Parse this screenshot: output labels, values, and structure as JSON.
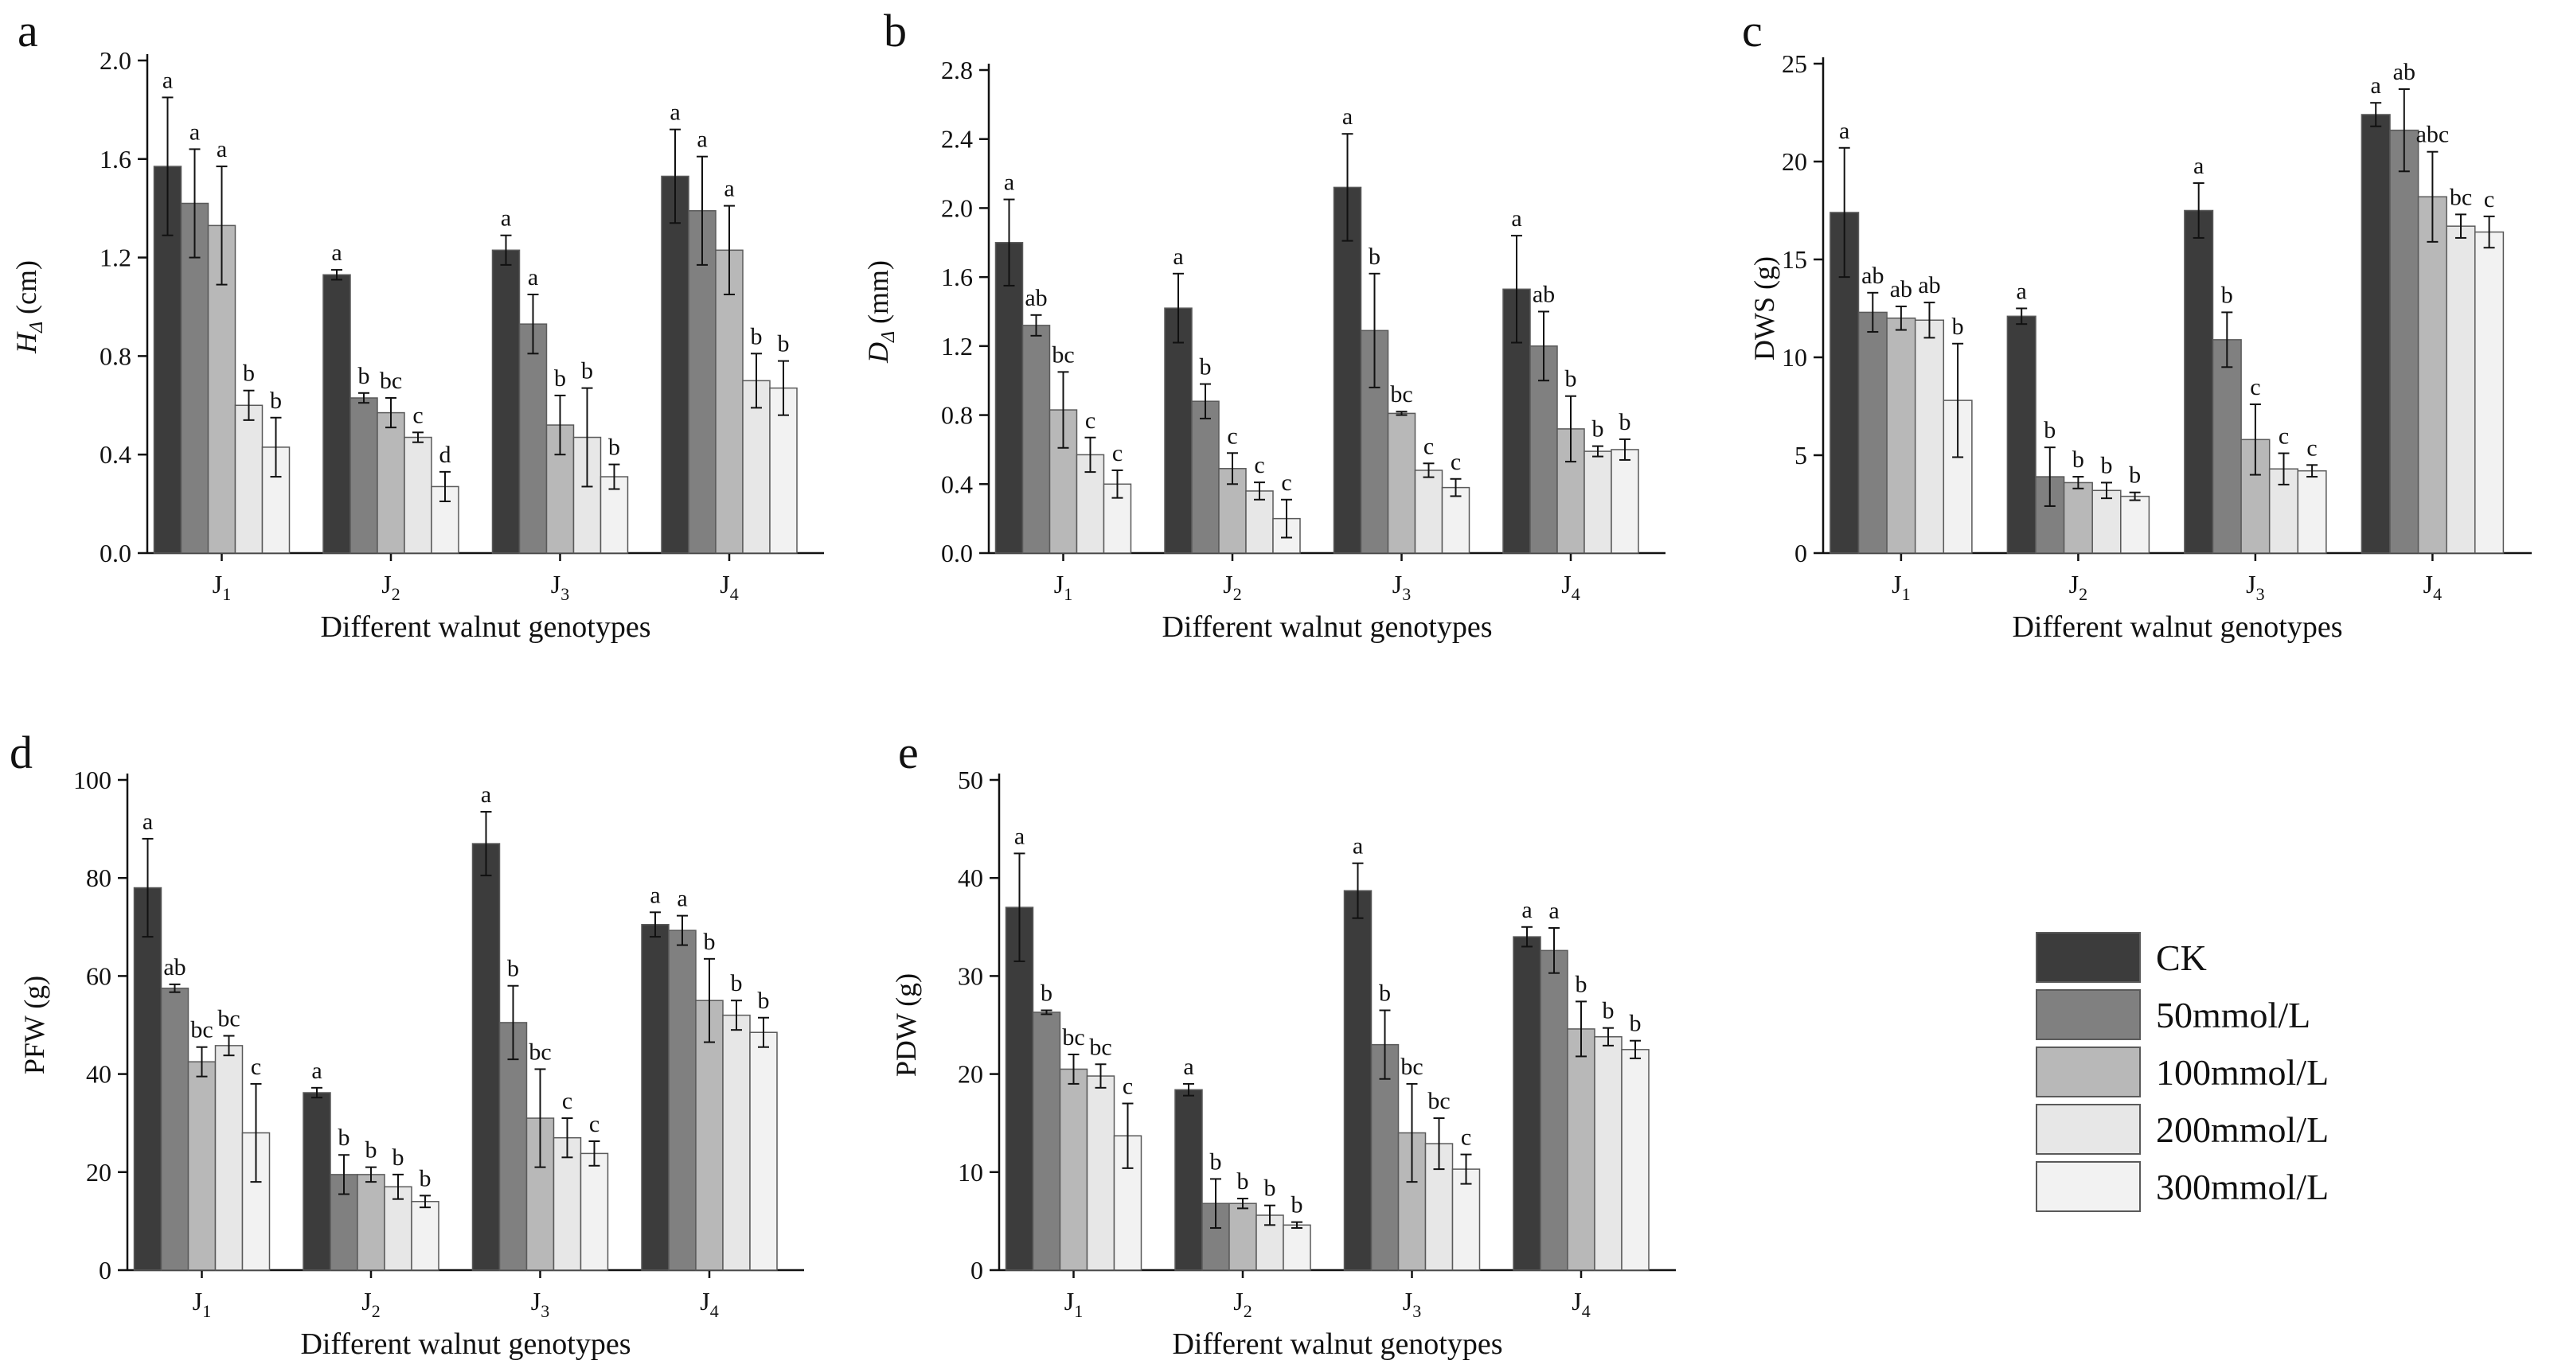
{
  "figure": {
    "xlabel": "Different walnut genotypes",
    "legend": [
      "CK",
      "50mmol/L",
      "100mmol/L",
      "200mmol/L",
      "300mmol/L"
    ],
    "colors": [
      "#3c3c3c",
      "#808080",
      "#b8b8b8",
      "#e7e7e7",
      "#f2f2f2"
    ]
  },
  "chart_data": [
    {
      "type": "bar",
      "panel": "a",
      "ylabel_main": "H",
      "ylabel_sub": "Δ",
      "ylabel_unit": " (cm)",
      "xlabel": "Different walnut genotypes",
      "categories": [
        "J1",
        "J2",
        "J3",
        "J4"
      ],
      "ylim": [
        0,
        2.0
      ],
      "yticks": [
        0.0,
        0.4,
        0.8,
        1.2,
        1.6,
        2.0
      ],
      "tick_decimals": 1,
      "series": [
        {
          "name": "CK",
          "values": [
            1.57,
            1.13,
            1.23,
            1.53
          ],
          "errors": [
            0.28,
            0.02,
            0.06,
            0.19
          ],
          "letters": [
            "a",
            "a",
            "a",
            "a"
          ]
        },
        {
          "name": "50mmol/L",
          "values": [
            1.42,
            0.63,
            0.93,
            1.39
          ],
          "errors": [
            0.22,
            0.02,
            0.12,
            0.22
          ],
          "letters": [
            "a",
            "b",
            "a",
            "a"
          ]
        },
        {
          "name": "100mmol/L",
          "values": [
            1.33,
            0.57,
            0.52,
            1.23
          ],
          "errors": [
            0.24,
            0.06,
            0.12,
            0.18
          ],
          "letters": [
            "a",
            "bc",
            "b",
            "a"
          ]
        },
        {
          "name": "200mmol/L",
          "values": [
            0.6,
            0.47,
            0.47,
            0.7
          ],
          "errors": [
            0.06,
            0.02,
            0.2,
            0.11
          ],
          "letters": [
            "b",
            "c",
            "b",
            "b"
          ]
        },
        {
          "name": "300mmol/L",
          "values": [
            0.43,
            0.27,
            0.31,
            0.67
          ],
          "errors": [
            0.12,
            0.06,
            0.05,
            0.11
          ],
          "letters": [
            "b",
            "d",
            "b",
            "b"
          ]
        }
      ]
    },
    {
      "type": "bar",
      "panel": "b",
      "ylabel_main": "D",
      "ylabel_sub": "Δ",
      "ylabel_unit": " (mm)",
      "xlabel": "Different walnut genotypes",
      "categories": [
        "J1",
        "J2",
        "J3",
        "J4"
      ],
      "ylim": [
        0,
        2.8
      ],
      "yticks": [
        0.0,
        0.4,
        0.8,
        1.2,
        1.6,
        2.0,
        2.4,
        2.8
      ],
      "tick_decimals": 1,
      "series": [
        {
          "name": "CK",
          "values": [
            1.8,
            1.42,
            2.12,
            1.53
          ],
          "errors": [
            0.25,
            0.2,
            0.31,
            0.31
          ],
          "letters": [
            "a",
            "a",
            "a",
            "a"
          ]
        },
        {
          "name": "50mmol/L",
          "values": [
            1.32,
            0.88,
            1.29,
            1.2
          ],
          "errors": [
            0.06,
            0.1,
            0.33,
            0.2
          ],
          "letters": [
            "ab",
            "b",
            "b",
            "ab"
          ]
        },
        {
          "name": "100mmol/L",
          "values": [
            0.83,
            0.49,
            0.81,
            0.72
          ],
          "errors": [
            0.22,
            0.09,
            0.01,
            0.19
          ],
          "letters": [
            "bc",
            "c",
            "bc",
            "b"
          ]
        },
        {
          "name": "200mmol/L",
          "values": [
            0.57,
            0.36,
            0.48,
            0.59
          ],
          "errors": [
            0.1,
            0.05,
            0.04,
            0.03
          ],
          "letters": [
            "c",
            "c",
            "c",
            "b"
          ]
        },
        {
          "name": "300mmol/L",
          "values": [
            0.4,
            0.2,
            0.38,
            0.6
          ],
          "errors": [
            0.08,
            0.11,
            0.05,
            0.06
          ],
          "letters": [
            "c",
            "c",
            "c",
            "b"
          ]
        }
      ]
    },
    {
      "type": "bar",
      "panel": "c",
      "ylabel_main": "DWS (g)",
      "ylabel_sub": "",
      "ylabel_unit": "",
      "xlabel": "Different walnut genotypes",
      "categories": [
        "J1",
        "J2",
        "J3",
        "J4"
      ],
      "ylim": [
        0,
        25
      ],
      "yticks": [
        0,
        5,
        10,
        15,
        20,
        25
      ],
      "tick_decimals": 0,
      "series": [
        {
          "name": "CK",
          "values": [
            17.4,
            12.1,
            17.5,
            22.4
          ],
          "errors": [
            3.3,
            0.4,
            1.4,
            0.6
          ],
          "letters": [
            "a",
            "a",
            "a",
            "a"
          ]
        },
        {
          "name": "50mmol/L",
          "values": [
            12.3,
            3.9,
            10.9,
            21.6
          ],
          "errors": [
            1.0,
            1.5,
            1.4,
            2.1
          ],
          "letters": [
            "ab",
            "b",
            "b",
            "ab"
          ]
        },
        {
          "name": "100mmol/L",
          "values": [
            12.0,
            3.6,
            5.8,
            18.2
          ],
          "errors": [
            0.6,
            0.3,
            1.8,
            2.3
          ],
          "letters": [
            "ab",
            "b",
            "c",
            "abc"
          ]
        },
        {
          "name": "200mmol/L",
          "values": [
            11.9,
            3.2,
            4.3,
            16.7
          ],
          "errors": [
            0.9,
            0.4,
            0.8,
            0.6
          ],
          "letters": [
            "ab",
            "b",
            "c",
            "bc"
          ]
        },
        {
          "name": "300mmol/L",
          "values": [
            7.8,
            2.9,
            4.2,
            16.4
          ],
          "errors": [
            2.9,
            0.2,
            0.3,
            0.8
          ],
          "letters": [
            "b",
            "b",
            "c",
            "c"
          ]
        }
      ]
    },
    {
      "type": "bar",
      "panel": "d",
      "ylabel_main": "PFW (g)",
      "ylabel_sub": "",
      "ylabel_unit": "",
      "xlabel": "Different walnut genotypes",
      "categories": [
        "J1",
        "J2",
        "J3",
        "J4"
      ],
      "ylim": [
        0,
        100
      ],
      "yticks": [
        0,
        20,
        40,
        60,
        80,
        100
      ],
      "tick_decimals": 0,
      "series": [
        {
          "name": "CK",
          "values": [
            78.0,
            36.2,
            87.0,
            70.5
          ],
          "errors": [
            10.0,
            1.0,
            6.5,
            2.5
          ],
          "letters": [
            "a",
            "a",
            "a",
            "a"
          ]
        },
        {
          "name": "50mmol/L",
          "values": [
            57.5,
            19.5,
            50.5,
            69.3
          ],
          "errors": [
            0.8,
            4.0,
            7.5,
            3.0
          ],
          "letters": [
            "ab",
            "b",
            "b",
            "a"
          ]
        },
        {
          "name": "100mmol/L",
          "values": [
            42.5,
            19.5,
            31.0,
            55.0
          ],
          "errors": [
            3.0,
            1.5,
            10.0,
            8.5
          ],
          "letters": [
            "bc",
            "b",
            "bc",
            "b"
          ]
        },
        {
          "name": "200mmol/L",
          "values": [
            45.8,
            17.0,
            27.0,
            52.0
          ],
          "errors": [
            2.0,
            2.5,
            4.0,
            3.0
          ],
          "letters": [
            "bc",
            "b",
            "c",
            "b"
          ]
        },
        {
          "name": "300mmol/L",
          "values": [
            28.0,
            14.0,
            23.8,
            48.5
          ],
          "errors": [
            10.0,
            1.2,
            2.5,
            3.0
          ],
          "letters": [
            "c",
            "b",
            "c",
            "b"
          ]
        }
      ]
    },
    {
      "type": "bar",
      "panel": "e",
      "ylabel_main": "PDW (g)",
      "ylabel_sub": "",
      "ylabel_unit": "",
      "xlabel": "Different walnut genotypes",
      "categories": [
        "J1",
        "J2",
        "J3",
        "J4"
      ],
      "ylim": [
        0,
        50
      ],
      "yticks": [
        0,
        10,
        20,
        30,
        40,
        50
      ],
      "tick_decimals": 0,
      "series": [
        {
          "name": "CK",
          "values": [
            37.0,
            18.4,
            38.7,
            34.0
          ],
          "errors": [
            5.5,
            0.6,
            2.8,
            1.0
          ],
          "letters": [
            "a",
            "a",
            "a",
            "a"
          ]
        },
        {
          "name": "50mmol/L",
          "values": [
            26.3,
            6.8,
            23.0,
            32.6
          ],
          "errors": [
            0.2,
            2.5,
            3.5,
            2.3
          ],
          "letters": [
            "b",
            "b",
            "b",
            "a"
          ]
        },
        {
          "name": "100mmol/L",
          "values": [
            20.5,
            6.8,
            14.0,
            24.6
          ],
          "errors": [
            1.5,
            0.5,
            5.0,
            2.8
          ],
          "letters": [
            "bc",
            "b",
            "bc",
            "b"
          ]
        },
        {
          "name": "200mmol/L",
          "values": [
            19.8,
            5.6,
            12.9,
            23.8
          ],
          "errors": [
            1.2,
            1.0,
            2.6,
            0.9
          ],
          "letters": [
            "bc",
            "b",
            "bc",
            "b"
          ]
        },
        {
          "name": "300mmol/L",
          "values": [
            13.7,
            4.6,
            10.3,
            22.5
          ],
          "errors": [
            3.3,
            0.3,
            1.5,
            0.9
          ],
          "letters": [
            "c",
            "b",
            "c",
            "b"
          ]
        }
      ]
    }
  ]
}
